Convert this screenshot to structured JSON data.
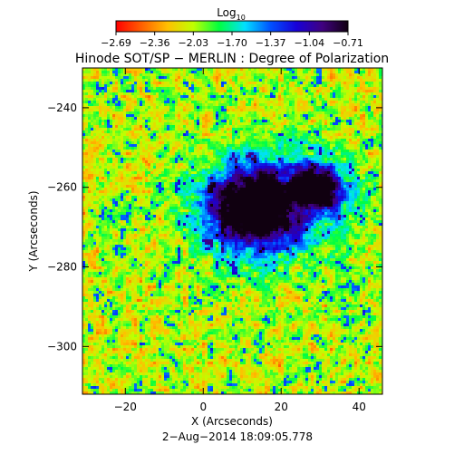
{
  "chart_data": {
    "type": "heatmap",
    "title": "Hinode SOT/SP − MERLIN : Degree of Polarization",
    "xlabel": "X (Arcseconds)",
    "ylabel": "Y (Arcseconds)",
    "timestamp": "2−Aug−2014 18:09:05.778",
    "colorbar": {
      "label_base": "Log",
      "label_sub": "10",
      "range": [
        -2.69,
        -0.71
      ],
      "ticks": [
        "−2.69",
        "−2.36",
        "−2.03",
        "−1.70",
        "−1.37",
        "−1.04",
        "−0.71"
      ],
      "colormap": "rainbow (red = low, violet/black = high)",
      "stops": [
        "#ff0000",
        "#ff6000",
        "#ffc000",
        "#c0ff00",
        "#00ff40",
        "#00e0ff",
        "#0050ff",
        "#1800d8",
        "#400080",
        "#100010"
      ]
    },
    "xlim": [
      -31,
      46
    ],
    "ylim": [
      -312,
      -230
    ],
    "xticks": [
      -20,
      0,
      20,
      40
    ],
    "xtick_labels": [
      "−20",
      "0",
      "20",
      "40"
    ],
    "yticks": [
      -240,
      -260,
      -280,
      -300
    ],
    "ytick_labels": [
      "−240",
      "−260",
      "−280",
      "−300"
    ],
    "features": {
      "sunspot_umbra_centers": [
        [
          13,
          -265
        ],
        [
          28,
          -260
        ]
      ],
      "description_of_map": "high polarization (sunspot) near center; low polarization (red) quiet sun at periphery"
    }
  }
}
